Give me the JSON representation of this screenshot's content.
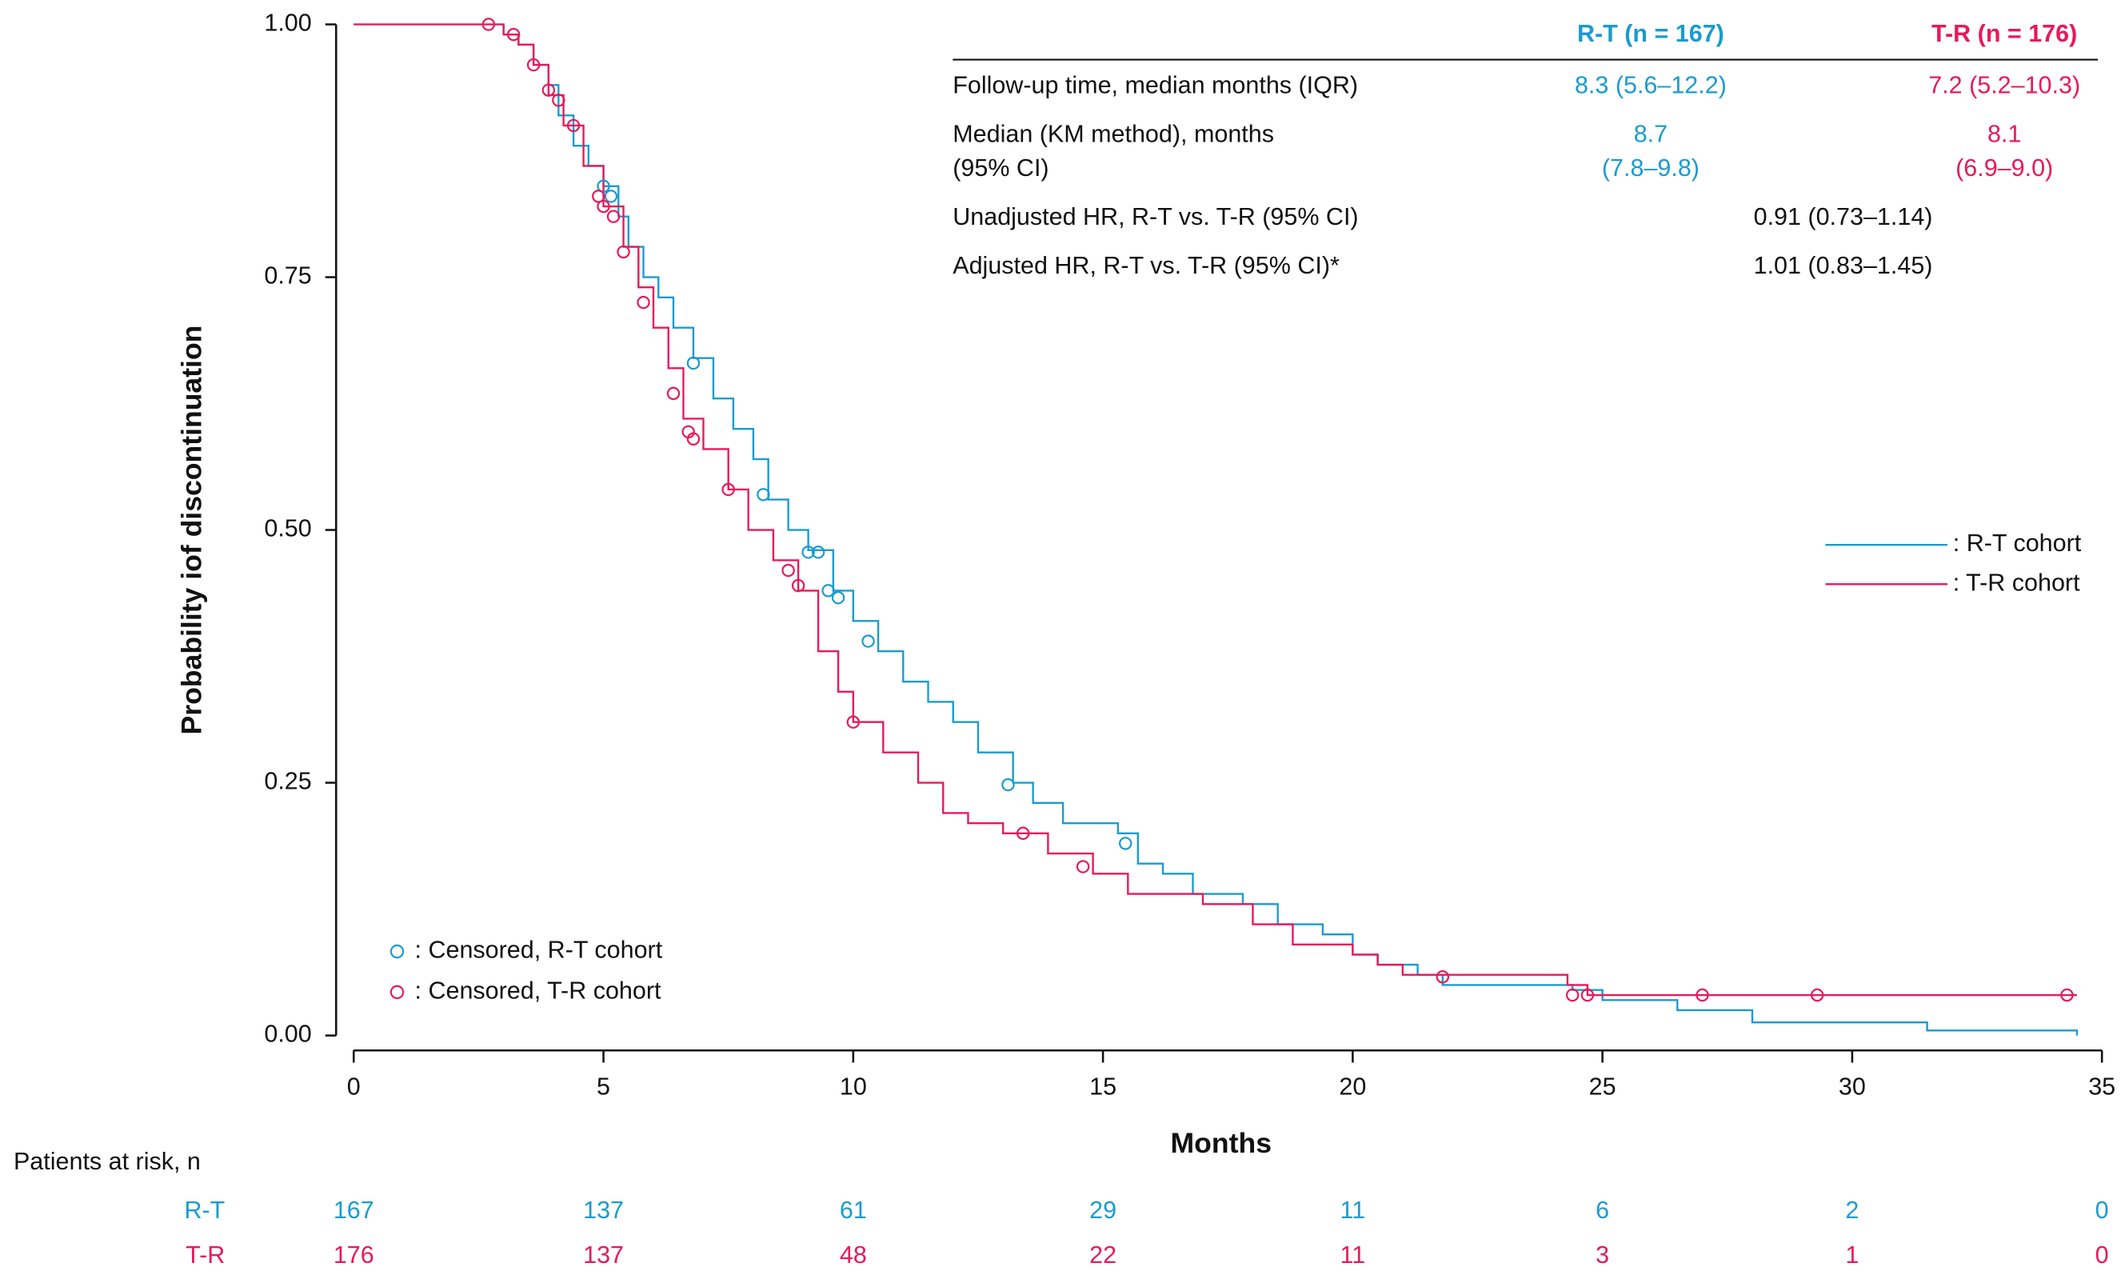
{
  "chart_data": {
    "type": "line",
    "drawstyle": "steps-post",
    "xlabel": "Months",
    "ylabel": "Probability iof discontinuation",
    "xlim": [
      0,
      35
    ],
    "ylim": [
      0,
      1
    ],
    "xticks": [
      0,
      5,
      10,
      15,
      20,
      25,
      30,
      35
    ],
    "yticks": [
      {
        "value": 0,
        "label": "0.00"
      },
      {
        "value": 0.25,
        "label": "0.25"
      },
      {
        "value": 0.5,
        "label": "0.50"
      },
      {
        "value": 0.75,
        "label": "0.75"
      },
      {
        "value": 1,
        "label": "1.00"
      }
    ],
    "legend": "center right",
    "series": [
      {
        "name": ": R-T cohort",
        "color": "#1a9bd0",
        "x": [
          0,
          3.0,
          3.3,
          3.6,
          3.9,
          4.1,
          4.4,
          4.7,
          5.0,
          5.3,
          5.5,
          5.8,
          6.1,
          6.4,
          6.8,
          7.2,
          7.6,
          8.0,
          8.3,
          8.7,
          9.1,
          9.6,
          10.0,
          10.5,
          11.0,
          11.5,
          12.0,
          12.5,
          13.2,
          13.6,
          14.2,
          15.3,
          15.7,
          16.2,
          16.8,
          17.8,
          18.5,
          19.4,
          20.0,
          20.5,
          21.3,
          21.8,
          24.4,
          25.0,
          26.5,
          28.0,
          31.5,
          34.5
        ],
        "values": [
          1.0,
          0.99,
          0.98,
          0.96,
          0.94,
          0.91,
          0.88,
          0.86,
          0.84,
          0.81,
          0.78,
          0.75,
          0.73,
          0.7,
          0.67,
          0.63,
          0.6,
          0.57,
          0.53,
          0.5,
          0.48,
          0.44,
          0.41,
          0.38,
          0.35,
          0.33,
          0.31,
          0.28,
          0.25,
          0.23,
          0.21,
          0.2,
          0.17,
          0.16,
          0.14,
          0.13,
          0.11,
          0.1,
          0.08,
          0.07,
          0.06,
          0.05,
          0.045,
          0.035,
          0.025,
          0.013,
          0.005,
          0.0
        ]
      },
      {
        "name": ": T-R cohort",
        "color": "#e8195a",
        "x": [
          0,
          3.0,
          3.3,
          3.6,
          3.9,
          4.2,
          4.6,
          5.0,
          5.4,
          5.7,
          6.0,
          6.3,
          6.6,
          7.0,
          7.5,
          7.9,
          8.4,
          8.9,
          9.3,
          9.7,
          10.0,
          10.6,
          11.3,
          11.8,
          12.3,
          13.0,
          13.9,
          14.8,
          15.5,
          17.0,
          18.0,
          18.8,
          20.0,
          20.5,
          21.0,
          24.3,
          24.7,
          34.5
        ],
        "values": [
          1.0,
          0.99,
          0.98,
          0.96,
          0.93,
          0.9,
          0.86,
          0.82,
          0.78,
          0.74,
          0.7,
          0.66,
          0.61,
          0.58,
          0.54,
          0.5,
          0.47,
          0.44,
          0.38,
          0.34,
          0.31,
          0.28,
          0.25,
          0.22,
          0.21,
          0.2,
          0.18,
          0.16,
          0.14,
          0.13,
          0.11,
          0.09,
          0.08,
          0.07,
          0.06,
          0.05,
          0.04,
          0.04
        ]
      }
    ],
    "censored_legend": "lower left",
    "censored": [
      {
        "name": ": Censored, R-T cohort",
        "color": "#1a9bd0",
        "marker": "open-circle",
        "x": [
          5.0,
          5.15,
          6.8,
          8.2,
          9.1,
          9.3,
          9.5,
          9.7,
          10.3,
          13.1,
          15.45
        ],
        "values": [
          0.84,
          0.83,
          0.665,
          0.535,
          0.478,
          0.478,
          0.44,
          0.433,
          0.39,
          0.248,
          0.19
        ]
      },
      {
        "name": ": Censored, T-R cohort",
        "color": "#e8195a",
        "marker": "open-circle",
        "x": [
          2.7,
          3.2,
          3.6,
          3.9,
          4.1,
          4.4,
          4.9,
          5.0,
          5.2,
          5.4,
          5.8,
          6.4,
          6.7,
          6.8,
          7.5,
          8.7,
          8.9,
          10.0,
          13.4,
          14.6,
          21.8,
          24.4,
          24.7,
          27.0,
          29.3,
          34.3
        ],
        "values": [
          1.0,
          0.99,
          0.96,
          0.935,
          0.925,
          0.9,
          0.83,
          0.82,
          0.81,
          0.775,
          0.725,
          0.635,
          0.597,
          0.59,
          0.54,
          0.46,
          0.445,
          0.31,
          0.2,
          0.167,
          0.058,
          0.04,
          0.04,
          0.04,
          0.04,
          0.04
        ]
      }
    ],
    "stats_table": {
      "columns": [
        "R-T (n = 167)",
        "T-R (n = 176)"
      ],
      "rows": [
        {
          "label": [
            "Follow-up time, median months (IQR)"
          ],
          "cells": [
            [
              "8.3 (5.6–12.2)"
            ],
            [
              "7.2 (5.2–10.3)"
            ]
          ]
        },
        {
          "label": [
            "Median (KM method), months",
            "(95% CI)"
          ],
          "cells": [
            [
              "8.7",
              "(7.8–9.8)"
            ],
            [
              "8.1",
              "(6.9–9.0)"
            ]
          ]
        },
        {
          "label": [
            "Unadjusted HR, R-T vs. T-R (95% CI)"
          ],
          "cells": [
            [
              "0.91 (0.73–1.14)"
            ]
          ]
        },
        {
          "label": [
            "Adjusted HR, R-T vs. T-R (95% CI)*"
          ],
          "cells": [
            [
              "1.01 (0.83–1.45)"
            ]
          ]
        }
      ]
    },
    "at_risk": {
      "title": "Patients at risk, n",
      "rows": [
        {
          "name": "R-T",
          "counts": [
            167,
            137,
            61,
            29,
            11,
            6,
            2,
            0
          ]
        },
        {
          "name": "T-R",
          "counts": [
            176,
            137,
            48,
            22,
            11,
            3,
            1,
            0
          ]
        }
      ]
    }
  }
}
